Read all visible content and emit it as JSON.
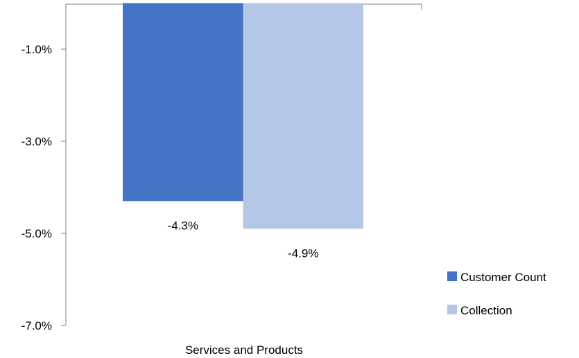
{
  "chart_data": {
    "type": "bar",
    "categories": [
      "Services and Products"
    ],
    "series": [
      {
        "name": "Customer Count",
        "values": [
          -4.3
        ],
        "color": "#4472C4",
        "label": "-4.3%"
      },
      {
        "name": "Collection",
        "values": [
          -4.9
        ],
        "color": "#B4C7E7",
        "label": "-4.9%"
      }
    ],
    "ylim": [
      -7.0,
      0.0
    ],
    "yticks": [
      -1.0,
      -3.0,
      -5.0,
      -7.0
    ],
    "ytick_labels": [
      "-1.0%",
      "-3.0%",
      "-5.0%",
      "-7.0%"
    ],
    "grid": false,
    "legend_position": "right"
  }
}
